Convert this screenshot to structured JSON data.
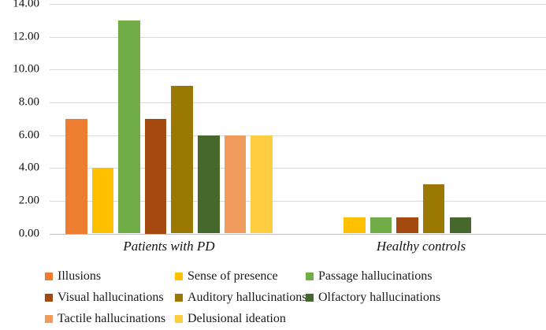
{
  "chart_data": {
    "type": "bar",
    "title": "",
    "xlabel": "",
    "ylabel": "",
    "categories": [
      "Patients with PD",
      "Healthy controls"
    ],
    "series": [
      {
        "name": "Illusions",
        "color": "#ED7D31",
        "values": [
          7,
          0
        ]
      },
      {
        "name": "Sense of presence",
        "color": "#FFC000",
        "values": [
          4,
          1
        ]
      },
      {
        "name": "Passage hallucinations",
        "color": "#70AD47",
        "values": [
          13,
          1
        ]
      },
      {
        "name": "Visual hallucinations",
        "color": "#A44A10",
        "values": [
          7,
          1
        ]
      },
      {
        "name": "Auditory hallucinations",
        "color": "#9A7802",
        "values": [
          9,
          3
        ]
      },
      {
        "name": "Olfactory hallucinations",
        "color": "#47682C",
        "values": [
          6,
          1
        ]
      },
      {
        "name": "Tactile hallucinations",
        "color": "#F09A5C",
        "values": [
          6,
          0
        ]
      },
      {
        "name": "Delusional ideation",
        "color": "#FFCD42",
        "values": [
          6,
          0
        ]
      }
    ],
    "ylim": [
      0,
      14
    ],
    "ytick_step": 2,
    "ytick_labels": [
      "0.00",
      "2.00",
      "4.00",
      "6.00",
      "8.00",
      "10.00",
      "12.00",
      "14.00"
    ],
    "grid": true,
    "gridline_color": "#D9D9D9",
    "axis_line_color": "#BFBFBF",
    "legend_position": "bottom"
  }
}
